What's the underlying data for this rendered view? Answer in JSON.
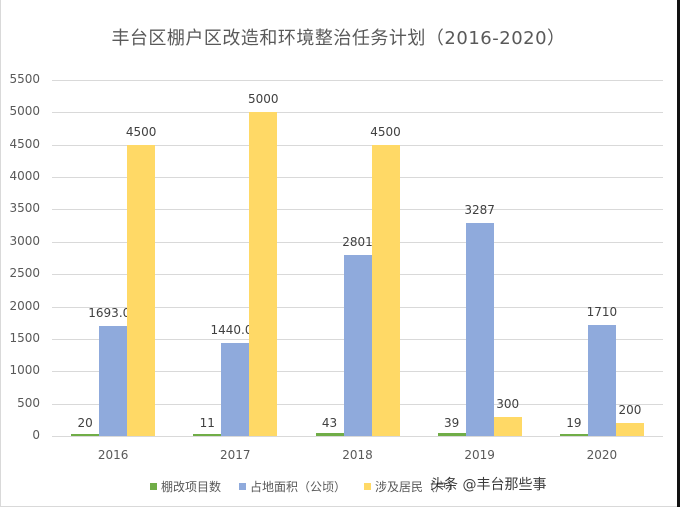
{
  "chart_data": {
    "type": "bar",
    "title": "丰台区棚户区改造和环境整治任务计划（2016-2020）",
    "categories": [
      "2016",
      "2017",
      "2018",
      "2019",
      "2020"
    ],
    "series": [
      {
        "name": "棚改项目数",
        "color": "#70ad47",
        "values": [
          20,
          11,
          43,
          39,
          19
        ]
      },
      {
        "name": "占地面积（公顷）",
        "color": "#8faadc",
        "values": [
          1693.02,
          1440.04,
          2801,
          3287,
          1710
        ]
      },
      {
        "name": "涉及居民（户）",
        "color": "#ffd966",
        "values": [
          4500,
          5000,
          4500,
          300,
          200
        ]
      }
    ],
    "data_labels": [
      [
        "20",
        "1693.02",
        "4500"
      ],
      [
        "11",
        "1440.04",
        "5000"
      ],
      [
        "43",
        "2801",
        "4500"
      ],
      [
        "39",
        "3287",
        "300"
      ],
      [
        "19",
        "1710",
        "200"
      ]
    ],
    "xlabel": "",
    "ylabel": "",
    "ylim": [
      0,
      5500
    ],
    "yticks": [
      "0",
      "500",
      "1000",
      "1500",
      "2000",
      "2500",
      "3000",
      "3500",
      "4000",
      "4500",
      "5000",
      "5500"
    ],
    "grid": true,
    "legend_position": "bottom"
  },
  "watermark": "头条 @丰台那些事"
}
